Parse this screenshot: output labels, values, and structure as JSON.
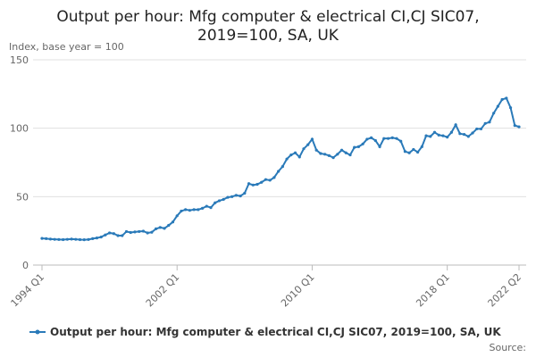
{
  "chart_data": {
    "type": "line",
    "title": [
      "Output per hour: Mfg computer & electrical CI,CJ SIC07,",
      "2019=100, SA, UK"
    ],
    "y_label": "Index, base year = 100",
    "source": "Source:",
    "categories": [
      "1994 Q1",
      null,
      null,
      null,
      null,
      null,
      null,
      null,
      null,
      null,
      null,
      null,
      null,
      null,
      null,
      null,
      null,
      null,
      null,
      null,
      null,
      null,
      null,
      null,
      null,
      null,
      null,
      null,
      null,
      null,
      null,
      null,
      "2002 Q1",
      null,
      null,
      null,
      null,
      null,
      null,
      null,
      null,
      null,
      null,
      null,
      null,
      null,
      null,
      null,
      null,
      null,
      null,
      null,
      null,
      null,
      null,
      null,
      null,
      null,
      null,
      null,
      null,
      null,
      null,
      null,
      "2010 Q1",
      null,
      null,
      null,
      null,
      null,
      null,
      null,
      null,
      null,
      null,
      null,
      null,
      null,
      null,
      null,
      null,
      null,
      null,
      null,
      null,
      null,
      null,
      null,
      null,
      null,
      null,
      null,
      null,
      null,
      null,
      null,
      "2018 Q1",
      null,
      null,
      null,
      null,
      null,
      null,
      null,
      null,
      null,
      null,
      null,
      null,
      null,
      null,
      null,
      null,
      "2022 Q2"
    ],
    "series": [
      {
        "name": "Output per hour: Mfg computer & electrical CI,CJ SIC07, 2019=100, SA, UK",
        "color": "#2a7ab9",
        "values": [
          19.5,
          19.3,
          19,
          18.8,
          18.7,
          18.6,
          18.8,
          19,
          18.8,
          18.6,
          18.5,
          18.7,
          19.3,
          19.8,
          20.5,
          22,
          23.5,
          23,
          21.5,
          21.5,
          24.5,
          23.8,
          24.2,
          24.5,
          24.8,
          23.5,
          24,
          26.5,
          27.5,
          26.8,
          29,
          31.5,
          36,
          39.5,
          40.5,
          40,
          40.5,
          40.5,
          41.5,
          43,
          42,
          45.5,
          47,
          48,
          49.5,
          50,
          51,
          50.5,
          52.5,
          59.5,
          58.5,
          59,
          60.5,
          62.5,
          62,
          64,
          68.5,
          72,
          77.5,
          80.5,
          82,
          79,
          85,
          88,
          92,
          84,
          81.5,
          81,
          80,
          78.5,
          81,
          84,
          82,
          80.5,
          86,
          86.5,
          88.5,
          92,
          93,
          91,
          86.5,
          92.5,
          92.5,
          93,
          92.5,
          90.5,
          83,
          82,
          84.5,
          82.5,
          86.5,
          94.5,
          94,
          97,
          95,
          94.5,
          93.5,
          97,
          102.5,
          96,
          95.5,
          94,
          96.5,
          99.5,
          99.5,
          103.5,
          104.5,
          111,
          116,
          121,
          122,
          115,
          102,
          101
        ]
      }
    ],
    "ylim": [
      0,
      150
    ],
    "yticks": [
      0,
      50,
      100,
      150
    ],
    "grid": true
  }
}
